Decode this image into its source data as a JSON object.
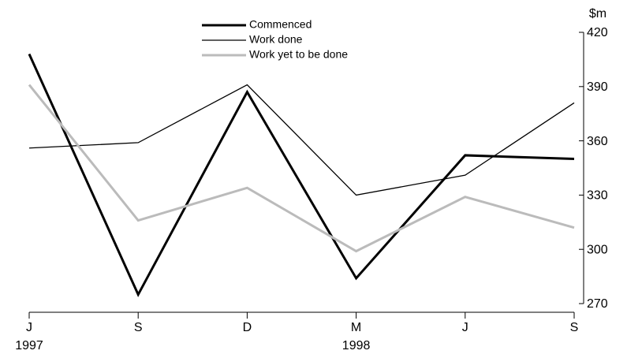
{
  "chart_data": {
    "type": "line",
    "y_unit": "$m",
    "categories": [
      "J",
      "S",
      "D",
      "M",
      "J",
      "S"
    ],
    "x_sublabels": [
      "1997",
      null,
      null,
      "1998",
      null,
      null
    ],
    "series": [
      {
        "name": "Commenced",
        "color": "#000000",
        "line_width": 3,
        "values": [
          408,
          275,
          387,
          284,
          352,
          350
        ]
      },
      {
        "name": "Work done",
        "color": "#000000",
        "line_width": 1.3,
        "values": [
          356,
          359,
          391,
          330,
          341,
          381
        ]
      },
      {
        "name": "Work yet to be done",
        "color": "#bbbbbb",
        "line_width": 3,
        "values": [
          391,
          316,
          334,
          299,
          329,
          312
        ]
      }
    ],
    "ylim": [
      270,
      420
    ],
    "yticks": [
      270,
      300,
      330,
      360,
      390,
      420
    ],
    "y_axis_side": "right"
  }
}
